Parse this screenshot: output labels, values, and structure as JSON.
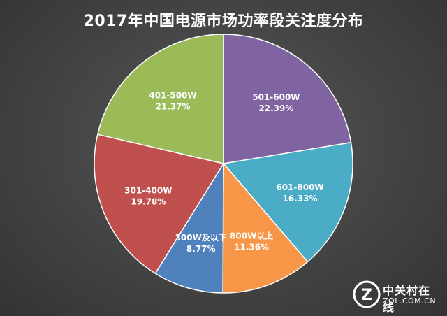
{
  "chart_data": {
    "type": "pie",
    "title": "2017年中国电源市场功率段关注度分布",
    "slices": [
      {
        "label": "501-600W",
        "value": 22.39,
        "value_text": "22.39%",
        "color": "#8064a2"
      },
      {
        "label": "601-800W",
        "value": 16.33,
        "value_text": "16.33%",
        "color": "#4bacc6"
      },
      {
        "label": "800W以上",
        "value": 11.36,
        "value_text": "11.36%",
        "color": "#f79646"
      },
      {
        "label": "300W及以下",
        "value": 8.77,
        "value_text": "8.77%",
        "color": "#4f81bd"
      },
      {
        "label": "301-400W",
        "value": 19.78,
        "value_text": "19.78%",
        "color": "#c0504d"
      },
      {
        "label": "401-500W",
        "value": 21.37,
        "value_text": "21.37%",
        "color": "#9bbb59"
      }
    ],
    "start_angle_deg": 0,
    "direction": "clockwise",
    "border_color": "#ffffff",
    "legend": "none",
    "data_labels": "inside"
  },
  "watermark": {
    "name_cn": "中关村在线",
    "domain": "ZOL.COM.CN",
    "logo_letter": "Z"
  },
  "colors": {
    "background": "#474747",
    "title": "#ffffff",
    "label": "#ffffff"
  }
}
